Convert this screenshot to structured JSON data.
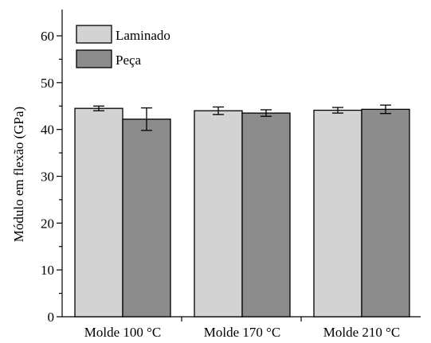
{
  "chart_data": {
    "type": "bar",
    "title": "",
    "xlabel": "",
    "ylabel": "Módulo em flexão (GPa)",
    "ylim": [
      0,
      65
    ],
    "yticks": [
      0,
      10,
      20,
      30,
      40,
      50,
      60
    ],
    "grid": false,
    "legend_position": "top-left",
    "categories": [
      "Molde 100 °C",
      "Molde 170 °C",
      "Molde 210 °C"
    ],
    "series": [
      {
        "name": "Laminado",
        "color": "#d3d3d3",
        "values": [
          44.5,
          44.0,
          44.1
        ],
        "errors": [
          0.5,
          0.8,
          0.6
        ]
      },
      {
        "name": "Peça",
        "color": "#8c8c8c",
        "values": [
          42.2,
          43.5,
          44.3
        ],
        "errors": [
          2.4,
          0.7,
          0.9
        ]
      }
    ]
  }
}
